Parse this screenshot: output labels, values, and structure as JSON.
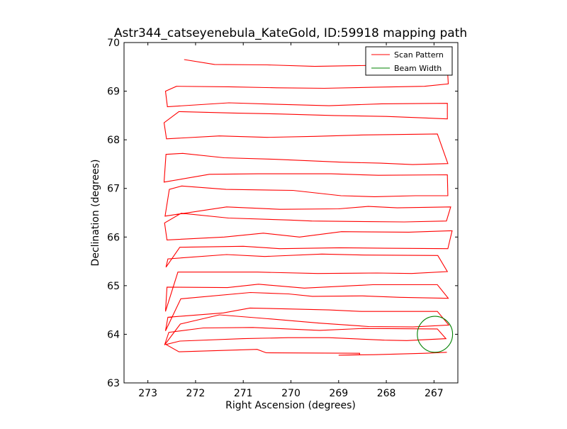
{
  "chart_data": {
    "type": "line",
    "title": "Astr344_catseyenebula_KateGold, ID:59918 mapping path",
    "xlabel": "Right Ascension (degrees)",
    "ylabel": "Declination (degrees)",
    "xlim": [
      273.5,
      266.5
    ],
    "ylim": [
      63,
      70
    ],
    "x_reversed": true,
    "xticks": [
      "273",
      "272",
      "271",
      "270",
      "269",
      "268",
      "267"
    ],
    "xtick_values": [
      273,
      272,
      271,
      270,
      269,
      268,
      267
    ],
    "yticks": [
      "63",
      "64",
      "65",
      "66",
      "67",
      "68",
      "69",
      "70"
    ],
    "ytick_values": [
      63,
      64,
      65,
      66,
      67,
      68,
      69,
      70
    ],
    "grid": false,
    "legend_placement": "top-right",
    "series": [
      {
        "name": "Scan Pattern",
        "kind": "line",
        "color": "#ff0000",
        "x": [
          266.73,
          267.18,
          268.25,
          269.0,
          268.56,
          268.56,
          270.52,
          270.71,
          272.35,
          272.62,
          272.33,
          271.0,
          270.06,
          269.2,
          268.04,
          267.57,
          266.75,
          266.93,
          268.48,
          269.4,
          270.8,
          271.84,
          272.56,
          272.65,
          272.32,
          271.5,
          270.48,
          269.4,
          268.37,
          267.44,
          266.69,
          266.93,
          268.52,
          269.2,
          270.86,
          271.42,
          272.58,
          272.63,
          272.31,
          270.85,
          270.05,
          269.55,
          268.5,
          267.72,
          266.7,
          266.93,
          268.28,
          269.72,
          270.68,
          271.33,
          272.6,
          272.63,
          272.37,
          270.7,
          269.44,
          268.19,
          267.47,
          266.72,
          266.92,
          268.45,
          269.35,
          270.55,
          271.35,
          272.58,
          272.62,
          272.33,
          271.0,
          270.23,
          268.98,
          268.02,
          266.71,
          266.62,
          267.53,
          268.94,
          269.82,
          270.58,
          271.4,
          272.6,
          272.65,
          272.3,
          271.31,
          270.03,
          269.56,
          268.72,
          267.62,
          266.74,
          266.65,
          267.77,
          268.38,
          269.0,
          270.23,
          271.35,
          272.64,
          272.55,
          272.29,
          271.36,
          269.96,
          268.95,
          268.25,
          267.39,
          266.71,
          266.72,
          268.17,
          269.16,
          270.69,
          271.71,
          272.66,
          272.62,
          272.27,
          271.4,
          270.36,
          268.95,
          268.12,
          267.45,
          266.71,
          266.93,
          268.48,
          269.5,
          270.5,
          271.5,
          272.61,
          272.66,
          272.35,
          271.2,
          270.2,
          269.1,
          268.0,
          267.2,
          266.72,
          266.72,
          268.1,
          269.2,
          270.3,
          271.3,
          272.59,
          272.63,
          272.4,
          271.3,
          270.3,
          269.3,
          268.3,
          267.2,
          266.7,
          266.72,
          267.2,
          268.3,
          269.5,
          270.5,
          271.6,
          272.24
        ],
        "y": [
          63.63,
          63.61,
          63.58,
          63.57,
          63.58,
          63.61,
          63.62,
          63.69,
          63.64,
          63.79,
          63.86,
          63.91,
          63.93,
          63.93,
          63.88,
          63.87,
          63.91,
          64.11,
          64.12,
          64.08,
          64.14,
          64.13,
          64.04,
          63.78,
          64.21,
          64.4,
          64.32,
          64.23,
          64.16,
          64.15,
          64.19,
          64.47,
          64.47,
          64.5,
          64.54,
          64.44,
          64.35,
          64.07,
          64.73,
          64.86,
          64.83,
          64.78,
          64.79,
          64.76,
          64.74,
          65.02,
          65.02,
          64.95,
          65.03,
          64.96,
          64.97,
          64.47,
          65.28,
          65.28,
          65.25,
          65.26,
          65.25,
          65.29,
          65.62,
          65.63,
          65.65,
          65.6,
          65.64,
          65.55,
          65.38,
          65.79,
          65.81,
          65.76,
          65.78,
          65.77,
          65.76,
          66.13,
          66.1,
          66.11,
          66.0,
          66.08,
          66.0,
          65.94,
          66.29,
          66.49,
          66.39,
          66.35,
          66.33,
          66.32,
          66.31,
          66.33,
          66.62,
          66.6,
          66.63,
          66.58,
          66.57,
          66.62,
          66.43,
          66.98,
          67.05,
          66.98,
          66.96,
          66.85,
          66.83,
          66.85,
          66.85,
          67.28,
          67.27,
          67.3,
          67.3,
          67.29,
          67.13,
          67.7,
          67.72,
          67.63,
          67.6,
          67.54,
          67.52,
          67.49,
          67.51,
          68.12,
          68.1,
          68.07,
          68.05,
          68.08,
          68.02,
          68.35,
          68.58,
          68.55,
          68.53,
          68.5,
          68.48,
          68.45,
          68.43,
          68.75,
          68.74,
          68.7,
          68.73,
          68.76,
          68.68,
          69.0,
          69.1,
          69.09,
          69.07,
          69.06,
          69.08,
          69.1,
          69.15,
          69.48,
          69.55,
          69.53,
          69.51,
          69.54,
          69.55,
          69.65
        ]
      },
      {
        "name": "Beam Width",
        "kind": "circle",
        "color": "#008000",
        "center": [
          266.98,
          64.0
        ],
        "radius_deg": 0.37
      }
    ]
  }
}
